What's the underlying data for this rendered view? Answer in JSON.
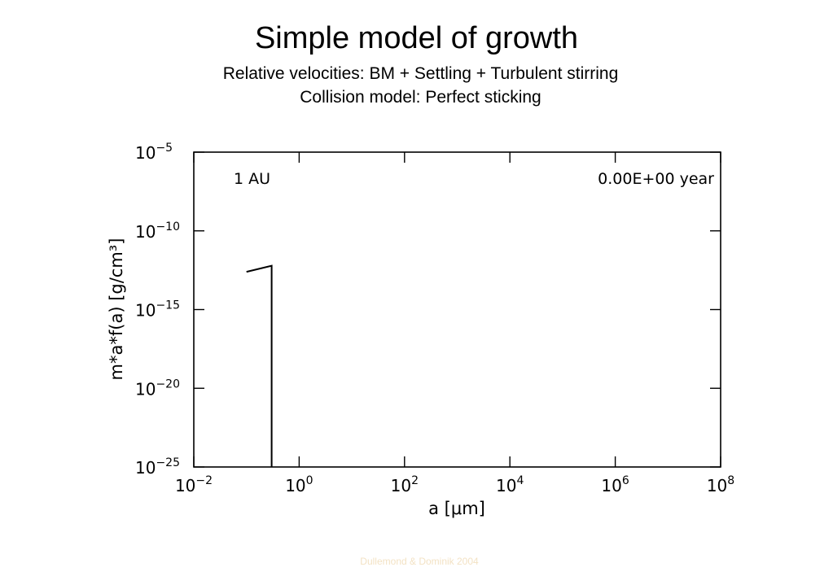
{
  "slide": {
    "title": "Simple model of growth",
    "subtitle_lines": [
      "Relative velocities: BM + Settling + Turbulent stirring",
      "Collision model: Perfect sticking"
    ],
    "credit": "Dullemond & Dominik 2004"
  },
  "chart_data": {
    "type": "line",
    "xlabel": "a [μm]",
    "ylabel": "m*a*f(a) [g/cm³]",
    "x_scale": "log",
    "y_scale": "log",
    "xlim": [
      0.01,
      100000000
    ],
    "ylim": [
      1e-25,
      1e-05
    ],
    "x_ticks": [
      {
        "value": 0.01,
        "base": "10",
        "exp": "−2"
      },
      {
        "value": 1,
        "base": "10",
        "exp": "0"
      },
      {
        "value": 100,
        "base": "10",
        "exp": "2"
      },
      {
        "value": 10000,
        "base": "10",
        "exp": "4"
      },
      {
        "value": 1000000,
        "base": "10",
        "exp": "6"
      },
      {
        "value": 100000000,
        "base": "10",
        "exp": "8"
      }
    ],
    "y_ticks": [
      {
        "value": 1e-05,
        "base": "10",
        "exp": "−5"
      },
      {
        "value": 1e-10,
        "base": "10",
        "exp": "−10"
      },
      {
        "value": 1e-15,
        "base": "10",
        "exp": "−15"
      },
      {
        "value": 1e-20,
        "base": "10",
        "exp": "−20"
      },
      {
        "value": 1e-25,
        "base": "10",
        "exp": "−25"
      }
    ],
    "annotations": {
      "left": "1 AU",
      "right": "0.00E+00 year"
    },
    "grid": false,
    "series": [
      {
        "x": [
          0.1,
          0.3,
          0.3
        ],
        "y": [
          2.5e-13,
          6e-13,
          1e-25
        ]
      }
    ]
  }
}
